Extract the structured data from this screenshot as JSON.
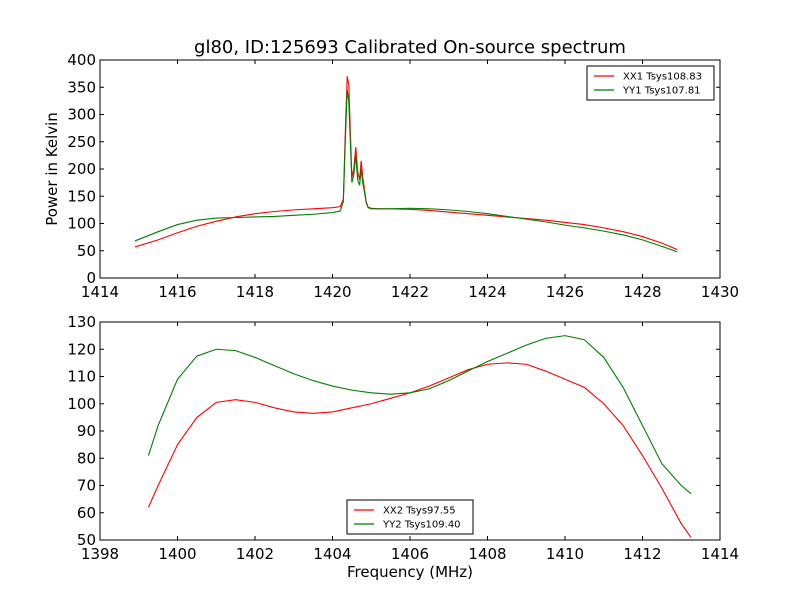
{
  "figure": {
    "title": "gl80, ID:125693 Calibrated On-source spectrum",
    "xlabel_bottom": "Frequency (MHz)",
    "ylabel_top": "Power in Kelvin"
  },
  "colors": {
    "xx": "#ff0000",
    "yy": "#007f00"
  },
  "chart_data": [
    {
      "type": "line",
      "title": "gl80, ID:125693 Calibrated On-source spectrum",
      "xlabel": "",
      "ylabel": "Power in Kelvin",
      "xlim": [
        1414,
        1430
      ],
      "ylim": [
        0,
        400
      ],
      "xticks": [
        "1414",
        "1416",
        "1418",
        "1420",
        "1422",
        "1424",
        "1426",
        "1428",
        "1430"
      ],
      "yticks": [
        "0",
        "50",
        "100",
        "150",
        "200",
        "250",
        "300",
        "350",
        "400"
      ],
      "legend": "top-right",
      "series": [
        {
          "name": "XX1 Tsys108.83",
          "color": "#ff0000",
          "x": [
            1414.9,
            1415.5,
            1416.0,
            1416.5,
            1417.0,
            1417.5,
            1418.0,
            1418.5,
            1419.0,
            1419.5,
            1420.0,
            1420.2,
            1420.28,
            1420.34,
            1420.38,
            1420.42,
            1420.46,
            1420.5,
            1420.55,
            1420.6,
            1420.65,
            1420.7,
            1420.74,
            1420.78,
            1420.82,
            1420.87,
            1420.92,
            1421.0,
            1421.2,
            1421.5,
            1422.0,
            1422.5,
            1423.0,
            1423.5,
            1424.0,
            1424.5,
            1425.0,
            1425.5,
            1426.0,
            1426.5,
            1427.0,
            1427.5,
            1428.0,
            1428.5,
            1428.9
          ],
          "y": [
            57,
            70,
            83,
            95,
            104,
            112,
            118,
            122,
            125,
            127,
            129,
            131,
            145,
            290,
            370,
            355,
            270,
            185,
            200,
            240,
            195,
            180,
            215,
            185,
            165,
            140,
            130,
            128,
            127,
            127,
            126,
            124,
            121,
            118,
            115,
            112,
            109,
            106,
            102,
            98,
            92,
            85,
            76,
            64,
            52
          ]
        },
        {
          "name": "YY1 Tsys107.81",
          "color": "#007f00",
          "x": [
            1414.9,
            1415.5,
            1416.0,
            1416.5,
            1417.0,
            1417.5,
            1418.0,
            1418.5,
            1419.0,
            1419.5,
            1420.0,
            1420.2,
            1420.28,
            1420.34,
            1420.38,
            1420.42,
            1420.46,
            1420.5,
            1420.55,
            1420.6,
            1420.65,
            1420.7,
            1420.74,
            1420.78,
            1420.82,
            1420.87,
            1420.92,
            1421.0,
            1421.2,
            1421.5,
            1422.0,
            1422.5,
            1423.0,
            1423.5,
            1424.0,
            1424.5,
            1425.0,
            1425.5,
            1426.0,
            1426.5,
            1427.0,
            1427.5,
            1428.0,
            1428.5,
            1428.9
          ],
          "y": [
            68,
            85,
            98,
            106,
            110,
            111,
            112,
            113,
            115,
            117,
            120,
            123,
            140,
            270,
            345,
            325,
            250,
            175,
            190,
            225,
            180,
            170,
            200,
            175,
            160,
            138,
            129,
            127,
            127,
            127,
            128,
            127,
            125,
            122,
            118,
            113,
            108,
            103,
            97,
            92,
            86,
            79,
            70,
            58,
            48
          ]
        }
      ]
    },
    {
      "type": "line",
      "title": "",
      "xlabel": "Frequency (MHz)",
      "ylabel": "",
      "xlim": [
        1398,
        1414
      ],
      "ylim": [
        50,
        130
      ],
      "xticks": [
        "1398",
        "1400",
        "1402",
        "1404",
        "1406",
        "1408",
        "1410",
        "1412",
        "1414"
      ],
      "yticks": [
        "50",
        "60",
        "70",
        "80",
        "90",
        "100",
        "110",
        "120",
        "130"
      ],
      "legend": "bottom-center",
      "series": [
        {
          "name": "XX2 Tsys97.55",
          "color": "#ff0000",
          "x": [
            1399.25,
            1399.5,
            1400.0,
            1400.5,
            1401.0,
            1401.5,
            1402.0,
            1402.5,
            1403.0,
            1403.5,
            1404.0,
            1404.5,
            1405.0,
            1405.5,
            1406.0,
            1406.5,
            1407.0,
            1407.5,
            1408.0,
            1408.5,
            1409.0,
            1409.5,
            1410.0,
            1410.5,
            1411.0,
            1411.5,
            1412.0,
            1412.5,
            1413.0,
            1413.25
          ],
          "y": [
            62,
            70,
            85,
            95,
            100.5,
            101.5,
            100.5,
            98.5,
            97,
            96.5,
            97,
            98.5,
            100,
            102,
            104,
            106.5,
            109.5,
            112.5,
            114.5,
            115,
            114.5,
            112,
            109,
            106,
            100,
            92,
            81,
            69,
            56,
            51
          ]
        },
        {
          "name": "YY2 Tsys109.40",
          "color": "#007f00",
          "x": [
            1399.25,
            1399.5,
            1400.0,
            1400.5,
            1401.0,
            1401.5,
            1402.0,
            1402.5,
            1403.0,
            1403.5,
            1404.0,
            1404.5,
            1405.0,
            1405.5,
            1406.0,
            1406.5,
            1407.0,
            1407.5,
            1408.0,
            1408.5,
            1409.0,
            1409.5,
            1410.0,
            1410.5,
            1411.0,
            1411.5,
            1412.0,
            1412.5,
            1413.0,
            1413.25
          ],
          "y": [
            81,
            92,
            109,
            117.5,
            120,
            119.5,
            117,
            114,
            111,
            108.5,
            106.5,
            105,
            104,
            103.5,
            104,
            105.5,
            108.5,
            112,
            115.5,
            118.5,
            121.5,
            124,
            125,
            123.5,
            117,
            106,
            92,
            78,
            70,
            67
          ]
        }
      ]
    }
  ]
}
